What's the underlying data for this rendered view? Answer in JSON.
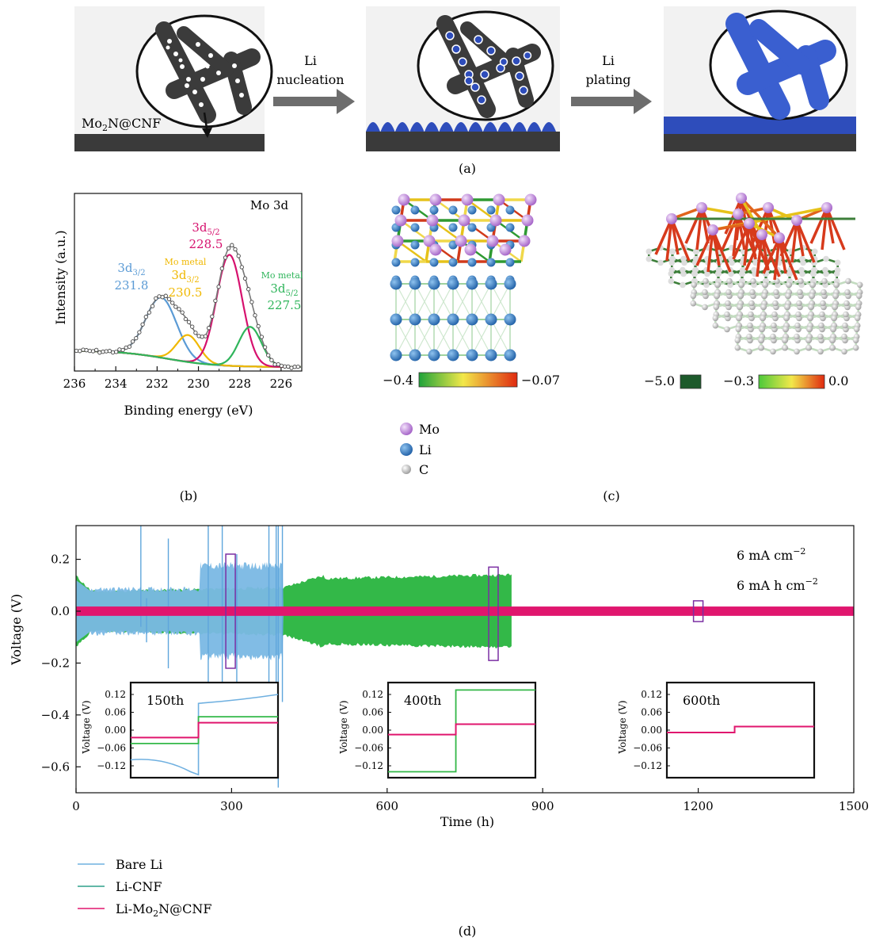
{
  "panel_a": {
    "label": "(a)",
    "material": "Mo₂N@CNF",
    "step1": [
      "Li",
      "nucleation"
    ],
    "step2": [
      "Li",
      "plating"
    ]
  },
  "panel_b": {
    "label": "(b)",
    "title": "Mo 3d",
    "xlabel": "Binding energy (eV)",
    "ylabel": "Intensity (a.u.)",
    "xticks": [
      "236",
      "234",
      "232",
      "230",
      "228",
      "226"
    ],
    "peak_labels": [
      {
        "top": "3d3/2",
        "sub": "",
        "value": "231.8",
        "color": "#5b9bd5"
      },
      {
        "top": "Mo metal",
        "sub": "3d3/2",
        "value": "230.5",
        "color": "#f0b800"
      },
      {
        "top": "3d5/2",
        "sub": "",
        "value": "228.5",
        "color": "#d6116e"
      },
      {
        "top": "Mo metal",
        "sub": "3d5/2",
        "value": "227.5",
        "color": "#2fb55b"
      }
    ]
  },
  "panel_c": {
    "label": "(c)",
    "scale_left": {
      "min": "−0.4",
      "max": "−0.07"
    },
    "scale_right": {
      "low": "−5.0",
      "min": "−0.3",
      "max": "0.0"
    },
    "legend": [
      {
        "name": "Mo",
        "color": "#c58ee0"
      },
      {
        "name": "Li",
        "color": "#2f78c4"
      },
      {
        "name": "C",
        "color": "#d9d9d9"
      }
    ]
  },
  "panel_d": {
    "label": "(d)",
    "annotation1": "6 mA cm−2",
    "annotation2": "6 mA h cm−2",
    "inset_labels": [
      "150th",
      "400th",
      "600th"
    ],
    "inset_yticks": [
      "0.12",
      "0.06",
      "0.00",
      "−0.06",
      "−0.12"
    ],
    "inset_ylabel": "Voltage (V)",
    "yticks": [
      "0.2",
      "0.0",
      "−0.2",
      "−0.4",
      "−0.6"
    ],
    "xticks": [
      "0",
      "300",
      "600",
      "900",
      "1200",
      "1500"
    ]
  },
  "chart_data": [
    {
      "type": "line",
      "title": "Mo 3d",
      "xlabel": "Binding energy (eV)",
      "ylabel": "Intensity (a.u.)",
      "xlim": [
        236,
        225
      ],
      "series": [
        {
          "name": "3d3/2",
          "center": 231.8,
          "color": "#5b9bd5"
        },
        {
          "name": "Mo metal 3d3/2",
          "center": 230.5,
          "color": "#f0b800"
        },
        {
          "name": "3d5/2",
          "center": 228.5,
          "color": "#d6116e"
        },
        {
          "name": "Mo metal 3d5/2",
          "center": 227.5,
          "color": "#2fb55b"
        }
      ]
    },
    {
      "type": "line",
      "xlabel": "Time (h)",
      "ylabel": "Voltage (V)",
      "xlim": [
        0,
        1500
      ],
      "ylim": [
        -0.7,
        0.33
      ],
      "series": [
        {
          "name": "Bare Li",
          "color": "#6fb0e0",
          "x_end": 400,
          "amplitude": 0.16
        },
        {
          "name": "Li-CNF",
          "color": "#2fb84a",
          "x_end": 840,
          "amplitude": 0.14
        },
        {
          "name": "Li-Mo₂N@CNF",
          "color": "#e0166e",
          "x_end": 1500,
          "amplitude": 0.015
        }
      ]
    }
  ]
}
